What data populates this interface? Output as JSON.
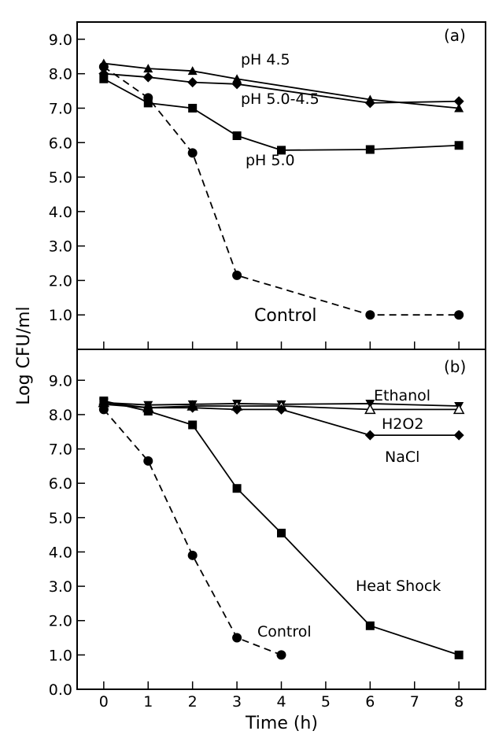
{
  "figure": {
    "ylabel": "Log CFU/ml",
    "xlabel": "Time (h)"
  },
  "chart_data": [
    {
      "type": "line",
      "panel": "(a)",
      "x_ticks": [
        0,
        1,
        2,
        3,
        4,
        5,
        6,
        7,
        8
      ],
      "y_tick_labels": [
        "1.0",
        "2.0",
        "3.0",
        "4.0",
        "5.0",
        "6.0",
        "7.0",
        "8.0",
        "9.0"
      ],
      "xlim": [
        -0.6,
        8.6
      ],
      "ylim": [
        0,
        9.5
      ],
      "series": [
        {
          "name": "pH 4.5",
          "marker": "triangle",
          "line": "solid",
          "x": [
            0,
            1,
            2,
            3,
            6,
            8
          ],
          "y": [
            8.3,
            8.15,
            8.08,
            7.85,
            7.25,
            7.0
          ]
        },
        {
          "name": "pH 5.0-4.5",
          "marker": "diamond",
          "line": "solid",
          "x": [
            0,
            1,
            2,
            3,
            6,
            8
          ],
          "y": [
            8.0,
            7.9,
            7.75,
            7.7,
            7.15,
            7.2
          ]
        },
        {
          "name": "pH 5.0",
          "marker": "square",
          "line": "solid",
          "x": [
            0,
            1,
            2,
            3,
            4,
            6,
            8
          ],
          "y": [
            7.85,
            7.15,
            7.0,
            6.2,
            5.78,
            5.8,
            5.92
          ]
        },
        {
          "name": "Control",
          "marker": "circle",
          "line": "dashed",
          "x": [
            0,
            1,
            2,
            3,
            6,
            8
          ],
          "y": [
            8.2,
            7.3,
            5.7,
            2.15,
            1.0,
            1.0
          ]
        }
      ]
    },
    {
      "type": "line",
      "panel": "(b)",
      "x_ticks": [
        0,
        1,
        2,
        3,
        4,
        5,
        6,
        7,
        8
      ],
      "y_tick_labels": [
        "0.0",
        "1.0",
        "2.0",
        "3.0",
        "4.0",
        "5.0",
        "6.0",
        "7.0",
        "8.0",
        "9.0"
      ],
      "xlim": [
        -0.6,
        8.6
      ],
      "ylim": [
        0,
        9.9
      ],
      "series": [
        {
          "name": "Ethanol",
          "marker": "inverted-triangle",
          "line": "solid",
          "x": [
            0,
            1,
            2,
            3,
            4,
            6,
            8
          ],
          "y": [
            8.35,
            8.28,
            8.3,
            8.32,
            8.3,
            8.32,
            8.25
          ]
        },
        {
          "name": "H2O2",
          "marker": "open-triangle",
          "line": "solid",
          "x": [
            0,
            1,
            2,
            3,
            4,
            6,
            8
          ],
          "y": [
            8.35,
            8.2,
            8.25,
            8.25,
            8.25,
            8.15,
            8.15
          ]
        },
        {
          "name": "NaCl",
          "marker": "diamond",
          "line": "solid",
          "x": [
            0,
            1,
            2,
            3,
            4,
            6,
            8
          ],
          "y": [
            8.3,
            8.2,
            8.2,
            8.15,
            8.15,
            7.4,
            7.4
          ]
        },
        {
          "name": "Heat Shock",
          "marker": "square",
          "line": "solid",
          "x": [
            0,
            1,
            2,
            3,
            4,
            6,
            8
          ],
          "y": [
            8.4,
            8.1,
            7.7,
            5.85,
            4.55,
            1.85,
            1.0
          ]
        },
        {
          "name": "Control",
          "marker": "circle",
          "line": "dashed",
          "x": [
            0,
            1,
            2,
            3,
            4
          ],
          "y": [
            8.15,
            6.65,
            3.9,
            1.5,
            1.0
          ]
        }
      ]
    }
  ]
}
